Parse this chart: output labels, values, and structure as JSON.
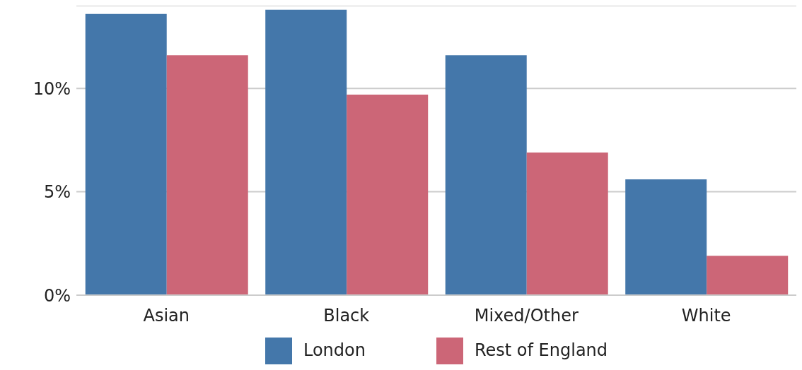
{
  "chart_data": {
    "type": "bar",
    "categories": [
      "Asian",
      "Black",
      "Mixed/Other",
      "White"
    ],
    "series": [
      {
        "name": "London",
        "color": "#4477aa",
        "values": [
          13.6,
          13.8,
          11.6,
          5.6
        ]
      },
      {
        "name": "Rest of England",
        "color": "#cc6677",
        "values": [
          11.6,
          9.7,
          6.9,
          1.9
        ]
      }
    ],
    "ylim": [
      0,
      14
    ],
    "yticks": [
      {
        "value": 0,
        "label": "0%"
      },
      {
        "value": 5,
        "label": "5%"
      },
      {
        "value": 10,
        "label": "10%"
      }
    ],
    "grid": "y",
    "legend": "bottom"
  }
}
